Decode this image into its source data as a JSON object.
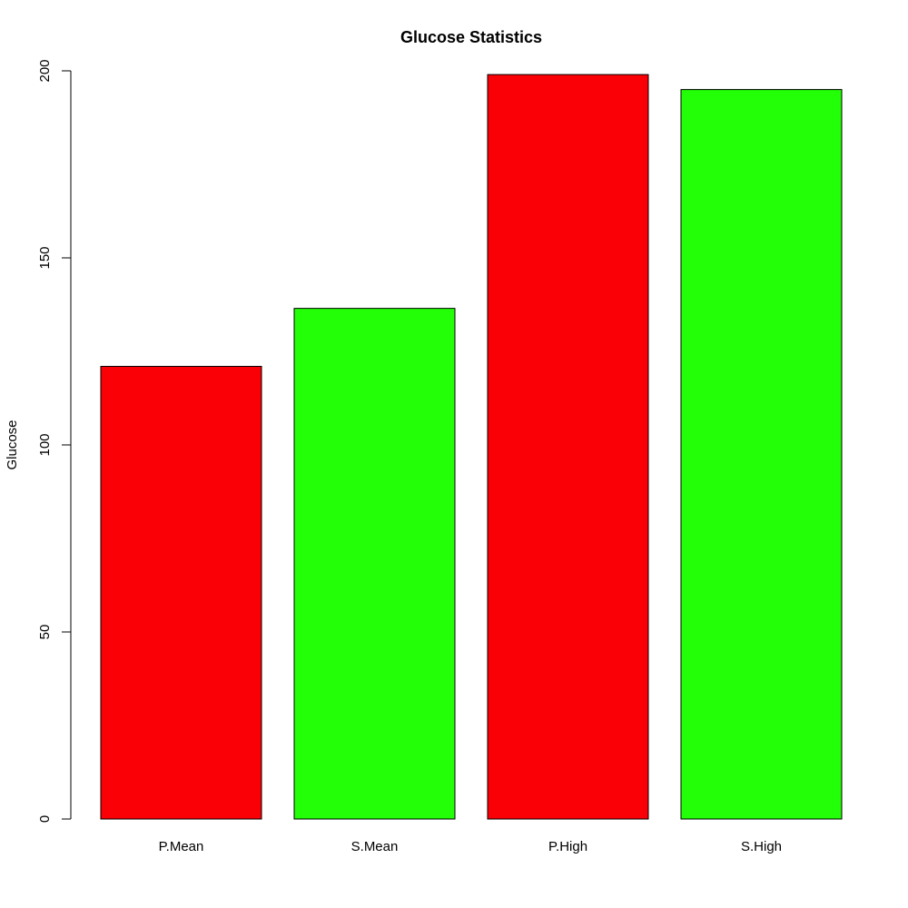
{
  "chart_data": {
    "type": "bar",
    "title": "Glucose Statistics",
    "xlabel": "",
    "ylabel": "Glucose",
    "categories": [
      "P.Mean",
      "S.Mean",
      "P.High",
      "S.High"
    ],
    "values": [
      121,
      136.5,
      199,
      195
    ],
    "colors": [
      "#FA0006",
      "#22FF06",
      "#FA0006",
      "#22FF06"
    ],
    "ylim": [
      0,
      200
    ],
    "yticks": [
      0,
      50,
      100,
      150,
      200
    ],
    "grid": false,
    "legend": "none"
  }
}
